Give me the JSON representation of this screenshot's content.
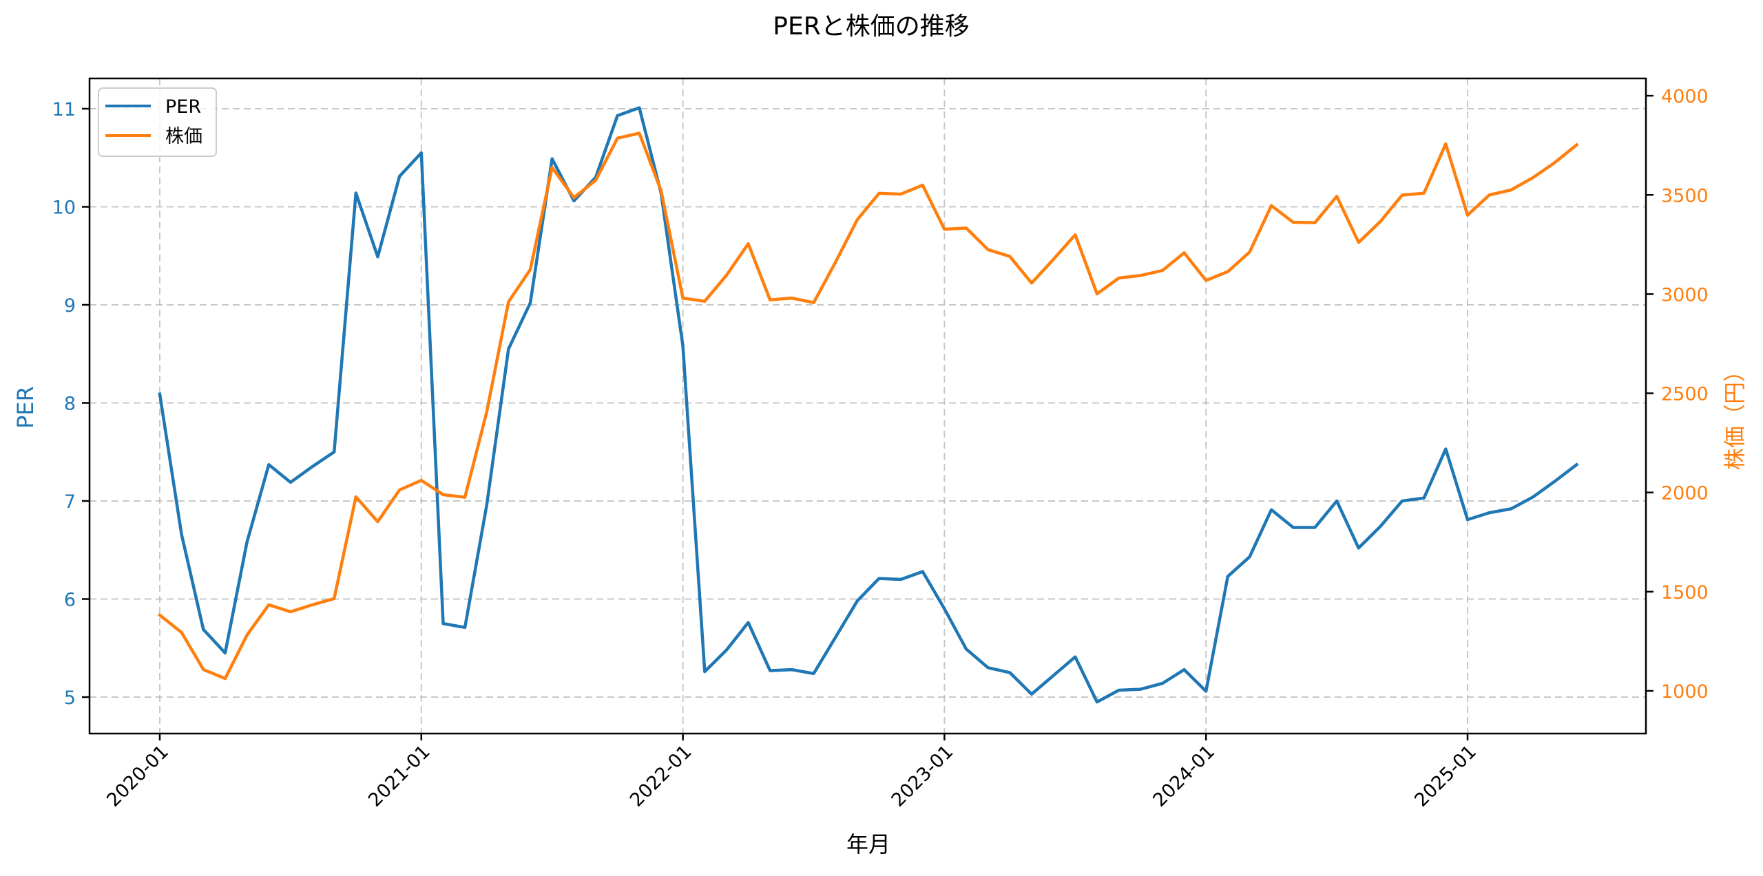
{
  "chart_data": {
    "type": "line",
    "title": "PERと株価の推移",
    "xlabel": "年月",
    "ylabel": "PER",
    "ylabel_right": "株価（円）",
    "x_tick_labels": [
      "2020-01",
      "2021-01",
      "2022-01",
      "2023-01",
      "2024-01",
      "2025-01"
    ],
    "y_left_ticks": [
      5,
      6,
      7,
      8,
      9,
      10,
      11
    ],
    "y_right_ticks": [
      1000,
      1500,
      2000,
      2500,
      3000,
      3500,
      4000
    ],
    "ylim_left": [
      4.63,
      11.32
    ],
    "ylim_right": [
      780,
      4090
    ],
    "grid": true,
    "grid_style": "dashed",
    "legend_position": "upper left",
    "x": [
      "2020-01",
      "2020-02",
      "2020-03",
      "2020-04",
      "2020-05",
      "2020-06",
      "2020-07",
      "2020-08",
      "2020-09",
      "2020-10",
      "2020-11",
      "2020-12",
      "2021-01",
      "2021-02",
      "2021-03",
      "2021-04",
      "2021-05",
      "2021-06",
      "2021-07",
      "2021-08",
      "2021-09",
      "2021-10",
      "2021-11",
      "2021-12",
      "2022-01",
      "2022-02",
      "2022-03",
      "2022-04",
      "2022-05",
      "2022-06",
      "2022-07",
      "2022-08",
      "2022-09",
      "2022-10",
      "2022-11",
      "2022-12",
      "2023-01",
      "2023-02",
      "2023-03",
      "2023-04",
      "2023-05",
      "2023-06",
      "2023-07",
      "2023-08",
      "2023-09",
      "2023-10",
      "2023-11",
      "2023-12",
      "2024-01",
      "2024-02",
      "2024-03",
      "2024-04",
      "2024-05",
      "2024-06",
      "2024-07",
      "2024-08",
      "2024-09",
      "2024-10",
      "2024-11",
      "2024-12",
      "2025-01",
      "2025-02",
      "2025-03",
      "2025-04",
      "2025-05",
      "2025-06"
    ],
    "series": [
      {
        "name": "PER",
        "axis": "left",
        "color": "#1f77b4",
        "values": [
          8.09,
          6.66,
          5.69,
          5.45,
          6.58,
          7.37,
          7.19,
          7.35,
          7.5,
          10.14,
          9.49,
          10.31,
          10.55,
          5.75,
          5.71,
          6.96,
          8.55,
          9.02,
          10.49,
          10.06,
          10.3,
          10.93,
          11.01,
          10.14,
          8.58,
          5.26,
          5.48,
          5.76,
          5.27,
          5.28,
          5.24,
          5.61,
          5.98,
          6.21,
          6.2,
          6.28,
          5.9,
          5.49,
          5.3,
          5.25,
          5.03,
          5.22,
          5.41,
          4.95,
          5.07,
          5.08,
          5.14,
          5.28,
          5.06,
          6.23,
          6.43,
          6.91,
          6.73,
          6.73,
          7.0,
          6.52,
          6.74,
          7.0,
          7.03,
          7.53,
          6.81,
          6.88,
          6.92,
          7.04,
          7.2,
          7.37
        ]
      },
      {
        "name": "株価",
        "axis": "right",
        "color": "#ff7f0e",
        "values": [
          1382,
          1295,
          1108,
          1062,
          1281,
          1434,
          1399,
          1434,
          1465,
          1978,
          1853,
          2013,
          2061,
          1989,
          1976,
          2407,
          2961,
          3124,
          3638,
          3486,
          3574,
          3786,
          3811,
          3522,
          2980,
          2964,
          3095,
          3254,
          2971,
          2980,
          2957,
          3161,
          3375,
          3508,
          3504,
          3549,
          3327,
          3333,
          3224,
          3190,
          3056,
          3175,
          3299,
          3001,
          3081,
          3094,
          3119,
          3208,
          3069,
          3113,
          3212,
          3446,
          3362,
          3360,
          3493,
          3261,
          3366,
          3499,
          3509,
          3757,
          3398,
          3500,
          3525,
          3587,
          3663,
          3752
        ]
      }
    ]
  },
  "legend": {
    "items": [
      {
        "label": "PER",
        "color": "#1f77b4"
      },
      {
        "label": "株価",
        "color": "#ff7f0e"
      }
    ]
  },
  "colors": {
    "per": "#1f77b4",
    "price": "#ff7f0e",
    "grid": "#b0b0b0",
    "background": "#ffffff"
  }
}
